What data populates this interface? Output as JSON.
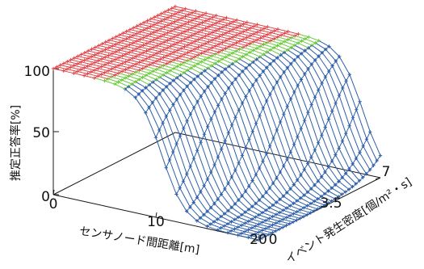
{
  "chart_data": {
    "type": "surface3d",
    "title": "",
    "x_axis": {
      "label": "センサノード間距離[m]",
      "range": [
        0,
        20
      ],
      "ticks": [
        "0",
        "10",
        "20"
      ],
      "tick_values": [
        0,
        10,
        20
      ]
    },
    "y_axis": {
      "label": "イベント発生密度[個/m²・s]",
      "range": [
        0,
        7
      ],
      "ticks": [
        "0",
        "3.5",
        "7"
      ],
      "tick_values": [
        0,
        3.5,
        7
      ]
    },
    "z_axis": {
      "label": "推定正答率[%]",
      "range": [
        0,
        100
      ],
      "ticks": [
        "0",
        "50",
        "100"
      ],
      "tick_values": [
        0,
        50,
        100
      ]
    },
    "grid": {
      "x_count": 21,
      "y_count": 36
    },
    "surface_model": "z = 100 / (1 + exp((x - x0(y)) / 1.1)); x0(y) = 10.6 + 7.7*y/7",
    "color_bands": [
      {
        "name": "high",
        "min": 100,
        "color": "#e0454a"
      },
      {
        "name": "mid",
        "min": 97,
        "color": "#6ec940"
      },
      {
        "name": "low",
        "min": 0,
        "color": "#2e5fa8"
      }
    ],
    "box_color": "#1a1a1a"
  }
}
